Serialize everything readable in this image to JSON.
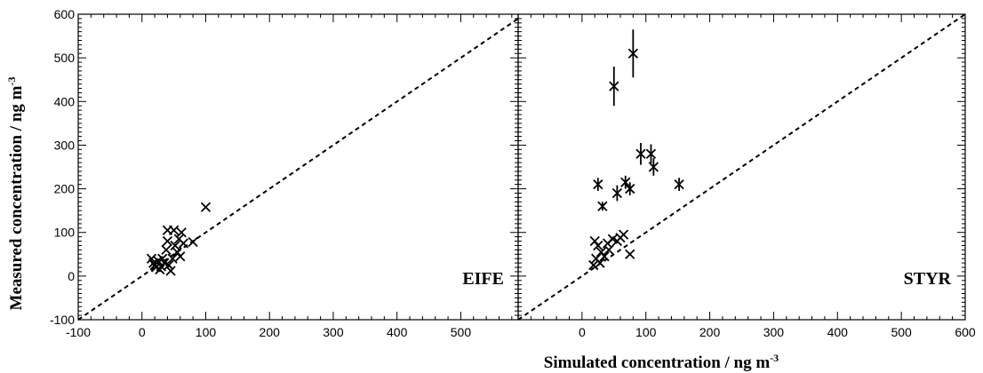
{
  "chart_data": [
    {
      "type": "scatter",
      "panel_label": "EIFE",
      "xlim": [
        -100,
        590
      ],
      "ylim": [
        -100,
        600
      ],
      "x_ticks": [
        "-100",
        "0",
        "100",
        "200",
        "300",
        "400",
        "500"
      ],
      "y_ticks": [
        "-100",
        "0",
        "100",
        "200",
        "300",
        "400",
        "500",
        "600"
      ],
      "reference_line": "1:1 dashed",
      "points": [
        {
          "x": 15,
          "y": 40
        },
        {
          "x": 18,
          "y": 30
        },
        {
          "x": 20,
          "y": 25
        },
        {
          "x": 22,
          "y": 20
        },
        {
          "x": 25,
          "y": 35
        },
        {
          "x": 28,
          "y": 15
        },
        {
          "x": 30,
          "y": 22
        },
        {
          "x": 32,
          "y": 40
        },
        {
          "x": 35,
          "y": 30
        },
        {
          "x": 38,
          "y": 60
        },
        {
          "x": 40,
          "y": 80
        },
        {
          "x": 40,
          "y": 105
        },
        {
          "x": 42,
          "y": 25
        },
        {
          "x": 45,
          "y": 12
        },
        {
          "x": 48,
          "y": 40
        },
        {
          "x": 50,
          "y": 105
        },
        {
          "x": 52,
          "y": 70
        },
        {
          "x": 55,
          "y": 55
        },
        {
          "x": 58,
          "y": 85
        },
        {
          "x": 60,
          "y": 45
        },
        {
          "x": 62,
          "y": 100
        },
        {
          "x": 65,
          "y": 75
        },
        {
          "x": 80,
          "y": 78
        },
        {
          "x": 100,
          "y": 158
        }
      ]
    },
    {
      "type": "scatter",
      "panel_label": "STYR",
      "xlim": [
        -100,
        600
      ],
      "ylim": [
        -100,
        600
      ],
      "x_ticks": [
        "0",
        "100",
        "200",
        "300",
        "400",
        "500",
        "600"
      ],
      "reference_line": "1:1 dashed",
      "points": [
        {
          "x": 18,
          "y": 25,
          "err": 0
        },
        {
          "x": 20,
          "y": 80,
          "err": 0
        },
        {
          "x": 22,
          "y": 40,
          "err": 0
        },
        {
          "x": 25,
          "y": 70,
          "err": 0
        },
        {
          "x": 25,
          "y": 210,
          "err": 15
        },
        {
          "x": 28,
          "y": 30,
          "err": 0
        },
        {
          "x": 30,
          "y": 55,
          "err": 0
        },
        {
          "x": 32,
          "y": 160,
          "err": 10
        },
        {
          "x": 35,
          "y": 45,
          "err": 0
        },
        {
          "x": 40,
          "y": 75,
          "err": 0
        },
        {
          "x": 42,
          "y": 60,
          "err": 0
        },
        {
          "x": 48,
          "y": 85,
          "err": 0
        },
        {
          "x": 50,
          "y": 435,
          "err": 45
        },
        {
          "x": 55,
          "y": 190,
          "err": 18
        },
        {
          "x": 55,
          "y": 80,
          "err": 0
        },
        {
          "x": 60,
          "y": 88,
          "err": 0
        },
        {
          "x": 65,
          "y": 95,
          "err": 0
        },
        {
          "x": 68,
          "y": 215,
          "err": 15
        },
        {
          "x": 75,
          "y": 200,
          "err": 15
        },
        {
          "x": 75,
          "y": 50,
          "err": 0
        },
        {
          "x": 80,
          "y": 510,
          "err": 55
        },
        {
          "x": 92,
          "y": 280,
          "err": 25
        },
        {
          "x": 108,
          "y": 280,
          "err": 22
        },
        {
          "x": 112,
          "y": 250,
          "err": 20
        },
        {
          "x": 152,
          "y": 210,
          "err": 15
        }
      ]
    }
  ],
  "xlabel": "Simulated concentration / ng m",
  "xlabel_sup": "-3",
  "ylabel": "Measured concentration / ng m",
  "ylabel_sup": "-3"
}
